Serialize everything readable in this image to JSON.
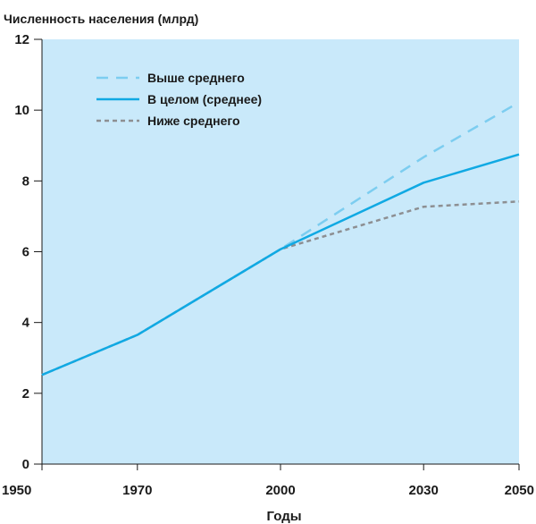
{
  "chart_data": {
    "type": "line",
    "title": "",
    "ylabel": "Численность населения (млрд)",
    "xlabel": "Годы",
    "x": [
      1950,
      1970,
      2000,
      2030,
      2050
    ],
    "x_tick_labels": [
      "1950",
      "1970",
      "2000",
      "2030",
      "2050"
    ],
    "x_positions": [
      0,
      20,
      50,
      80,
      100
    ],
    "ylim": [
      0,
      12
    ],
    "y_ticks": [
      0,
      2,
      4,
      6,
      8,
      10,
      12
    ],
    "y_tick_labels": [
      "0",
      "2",
      "4",
      "6",
      "8",
      "10",
      "12"
    ],
    "grid": false,
    "legend_position": "top-left",
    "plot_background": "#c9e9fa",
    "series": [
      {
        "name": "Выше среднего",
        "values": [
          2.52,
          3.65,
          6.07,
          8.67,
          10.22
        ],
        "color": "#7ccdf0",
        "style": "dashed"
      },
      {
        "name": "В целом (среднее)",
        "values": [
          2.52,
          3.65,
          6.07,
          7.95,
          8.75
        ],
        "color": "#10a9e3",
        "style": "solid"
      },
      {
        "name": "Ниже среднего",
        "values": [
          2.52,
          3.65,
          6.07,
          7.27,
          7.42
        ],
        "color": "#8d8f92",
        "style": "dotted"
      }
    ]
  }
}
